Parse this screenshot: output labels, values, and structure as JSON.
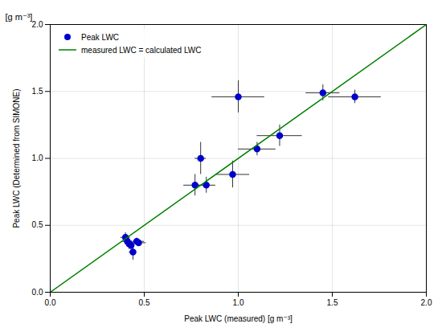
{
  "chart_data": {
    "type": "scatter",
    "xlabel": "Peak LWC (measured) [g m⁻³]",
    "ylabel": "Peak LWC (Determined from SIMONE)",
    "annotations": [
      "[g m⁻³]"
    ],
    "xlim": [
      0.0,
      2.0
    ],
    "ylim": [
      0.0,
      2.0
    ],
    "xticks": [
      {
        "value": 0.0,
        "label": "0.0"
      },
      {
        "value": 0.5,
        "label": "0.5"
      },
      {
        "value": 1.0,
        "label": "1.0"
      },
      {
        "value": 1.5,
        "label": "1.5"
      },
      {
        "value": 2.0,
        "label": "2.0"
      }
    ],
    "yticks": [
      {
        "value": 0.0,
        "label": "0.0"
      },
      {
        "value": 0.5,
        "label": "0.5"
      },
      {
        "value": 1.0,
        "label": "1.0"
      },
      {
        "value": 1.5,
        "label": "1.5"
      },
      {
        "value": 2.0,
        "label": "2.0"
      }
    ],
    "grid": true,
    "legend": "upper left",
    "series": [
      {
        "name": "Peak LWC",
        "type": "scatter",
        "marker": "circle",
        "color": "#0000CD",
        "error_color": "#333333",
        "x": [
          0.4,
          0.41,
          0.42,
          0.43,
          0.44,
          0.46,
          0.47,
          0.77,
          0.83,
          0.8,
          0.97,
          1.0,
          1.1,
          1.22,
          1.45,
          1.62
        ],
        "values": [
          0.41,
          0.38,
          0.36,
          0.35,
          0.3,
          0.38,
          0.37,
          0.8,
          0.8,
          1.0,
          0.88,
          1.46,
          1.07,
          1.17,
          1.49,
          1.46
        ],
        "xerr": [
          0.025,
          0.025,
          0.02,
          0.02,
          0.02,
          0.04,
          0.04,
          0.06,
          0.05,
          0.03,
          0.09,
          0.14,
          0.1,
          0.12,
          0.09,
          0.14
        ],
        "yerr": [
          0.035,
          0.035,
          0.04,
          0.035,
          0.06,
          0.025,
          0.02,
          0.08,
          0.06,
          0.12,
          0.1,
          0.12,
          0.05,
          0.08,
          0.06,
          0.05
        ]
      },
      {
        "name": "measured LWC = calculated LWC",
        "type": "line",
        "line_style": "solid",
        "color": "#008000",
        "x": [
          0,
          2
        ],
        "values": [
          0,
          2
        ]
      }
    ]
  }
}
